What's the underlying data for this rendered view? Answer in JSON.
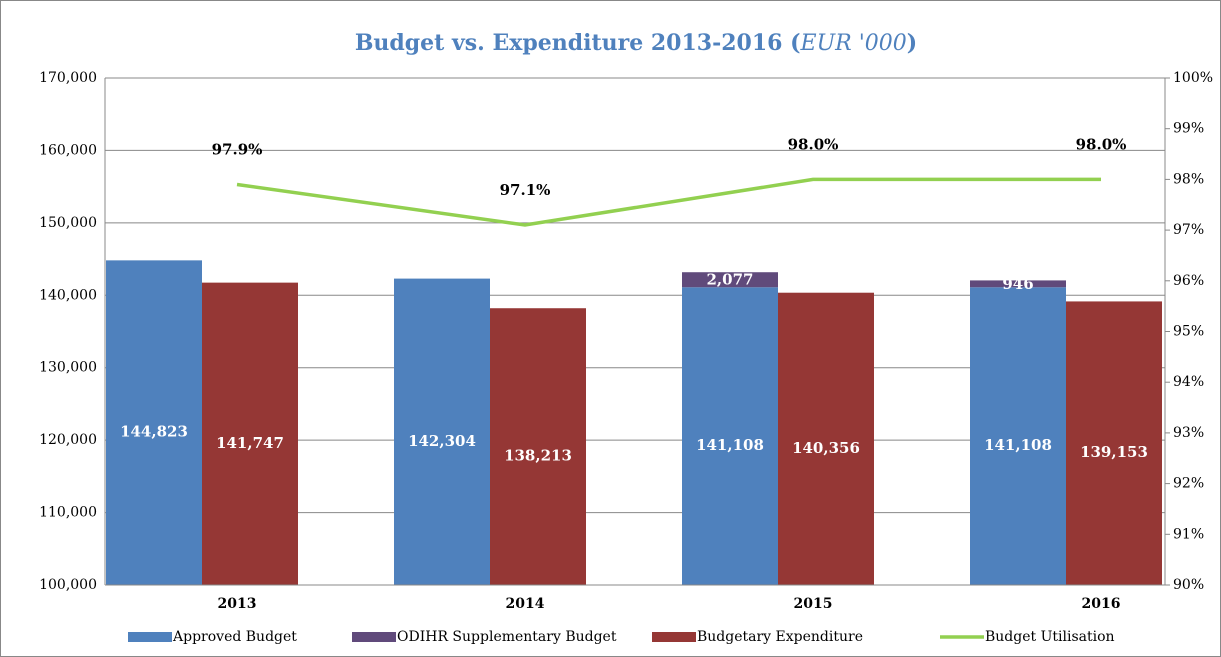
{
  "chart_data": {
    "type": "bar_line",
    "title_parts": [
      "Budget vs. Expenditure 2013-2016 (",
      "EUR '000",
      ")"
    ],
    "categories": [
      "2013",
      "2014",
      "2015",
      "2016"
    ],
    "series": [
      {
        "name": "Approved Budget",
        "color": "#4f81bd",
        "kind": "bar",
        "stack": "budget",
        "values": [
          144823,
          142304,
          141108,
          141108
        ],
        "value_labels": [
          "144,823",
          "142,304",
          "141,108",
          "141,108"
        ]
      },
      {
        "name": "ODIHR Supplementary Budget",
        "color": "#604a7b",
        "kind": "bar",
        "stack": "budget",
        "values": [
          null,
          null,
          2077,
          946
        ],
        "value_labels": [
          null,
          null,
          "2,077",
          "946"
        ]
      },
      {
        "name": "Budgetary Expenditure",
        "color": "#953735",
        "kind": "bar",
        "stack": "expenditure",
        "values": [
          141747,
          138213,
          140356,
          139153
        ],
        "value_labels": [
          "141,747",
          "138,213",
          "140,356",
          "139,153"
        ]
      },
      {
        "name": "Budget Utilisation",
        "color": "#92d050",
        "kind": "line",
        "axis": "y2",
        "values": [
          97.9,
          97.1,
          98.0,
          98.0
        ],
        "value_labels": [
          "97.9%",
          "97.1%",
          "98.0%",
          "98.0%"
        ]
      }
    ],
    "ylim": [
      100000,
      170000
    ],
    "yticks": [
      {
        "value": 100000,
        "label": "100,000"
      },
      {
        "value": 110000,
        "label": "110,000"
      },
      {
        "value": 120000,
        "label": "120,000"
      },
      {
        "value": 130000,
        "label": "130,000"
      },
      {
        "value": 140000,
        "label": "140,000"
      },
      {
        "value": 150000,
        "label": "150,000"
      },
      {
        "value": 160000,
        "label": "160,000"
      },
      {
        "value": 170000,
        "label": "170,000"
      }
    ],
    "y2lim": [
      90,
      100
    ],
    "y2ticks": [
      {
        "value": 90,
        "label": "90%"
      },
      {
        "value": 91,
        "label": "91%"
      },
      {
        "value": 92,
        "label": "92%"
      },
      {
        "value": 93,
        "label": "93%"
      },
      {
        "value": 94,
        "label": "94%"
      },
      {
        "value": 95,
        "label": "95%"
      },
      {
        "value": 96,
        "label": "96%"
      },
      {
        "value": 97,
        "label": "97%"
      },
      {
        "value": 98,
        "label": "98%"
      },
      {
        "value": 99,
        "label": "99%"
      },
      {
        "value": 100,
        "label": "100%"
      }
    ],
    "grid": true,
    "legend": "bottom"
  }
}
